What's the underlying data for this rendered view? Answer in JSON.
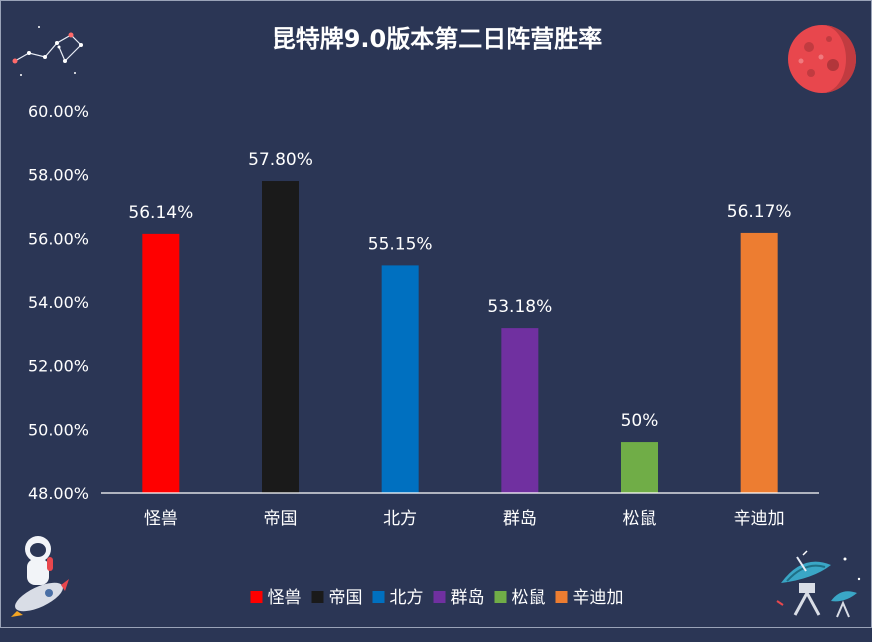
{
  "chart_data": {
    "type": "bar",
    "title": "昆特牌9.0版本第二日阵营胜率",
    "categories": [
      "怪兽",
      "帝国",
      "北方",
      "群岛",
      "松鼠",
      "辛迪加"
    ],
    "values": [
      56.14,
      57.8,
      55.15,
      53.18,
      49.6,
      56.17
    ],
    "data_labels": [
      "56.14%",
      "57.80%",
      "55.15%",
      "53.18%",
      "50%",
      "56.17%"
    ],
    "colors": [
      "#ff0000",
      "#1a1a1a",
      "#0070c0",
      "#7030a0",
      "#70ad47",
      "#ed7d31"
    ],
    "ylim": [
      48,
      60
    ],
    "yticks": [
      48,
      50,
      52,
      54,
      56,
      58,
      60
    ],
    "ytick_labels": [
      "48.00%",
      "50.00%",
      "52.00%",
      "54.00%",
      "56.00%",
      "58.00%",
      "60.00%"
    ],
    "legend": [
      "怪兽",
      "帝国",
      "北方",
      "群岛",
      "松鼠",
      "辛迪加"
    ],
    "legend_position": "bottom",
    "grid": false,
    "xlabel": "",
    "ylabel": ""
  },
  "decor": {
    "constellation": "constellation-icon",
    "planet": "mars-planet-icon",
    "astronaut": "astronaut-on-rocket-icon",
    "satellite": "satellite-dish-icon"
  }
}
